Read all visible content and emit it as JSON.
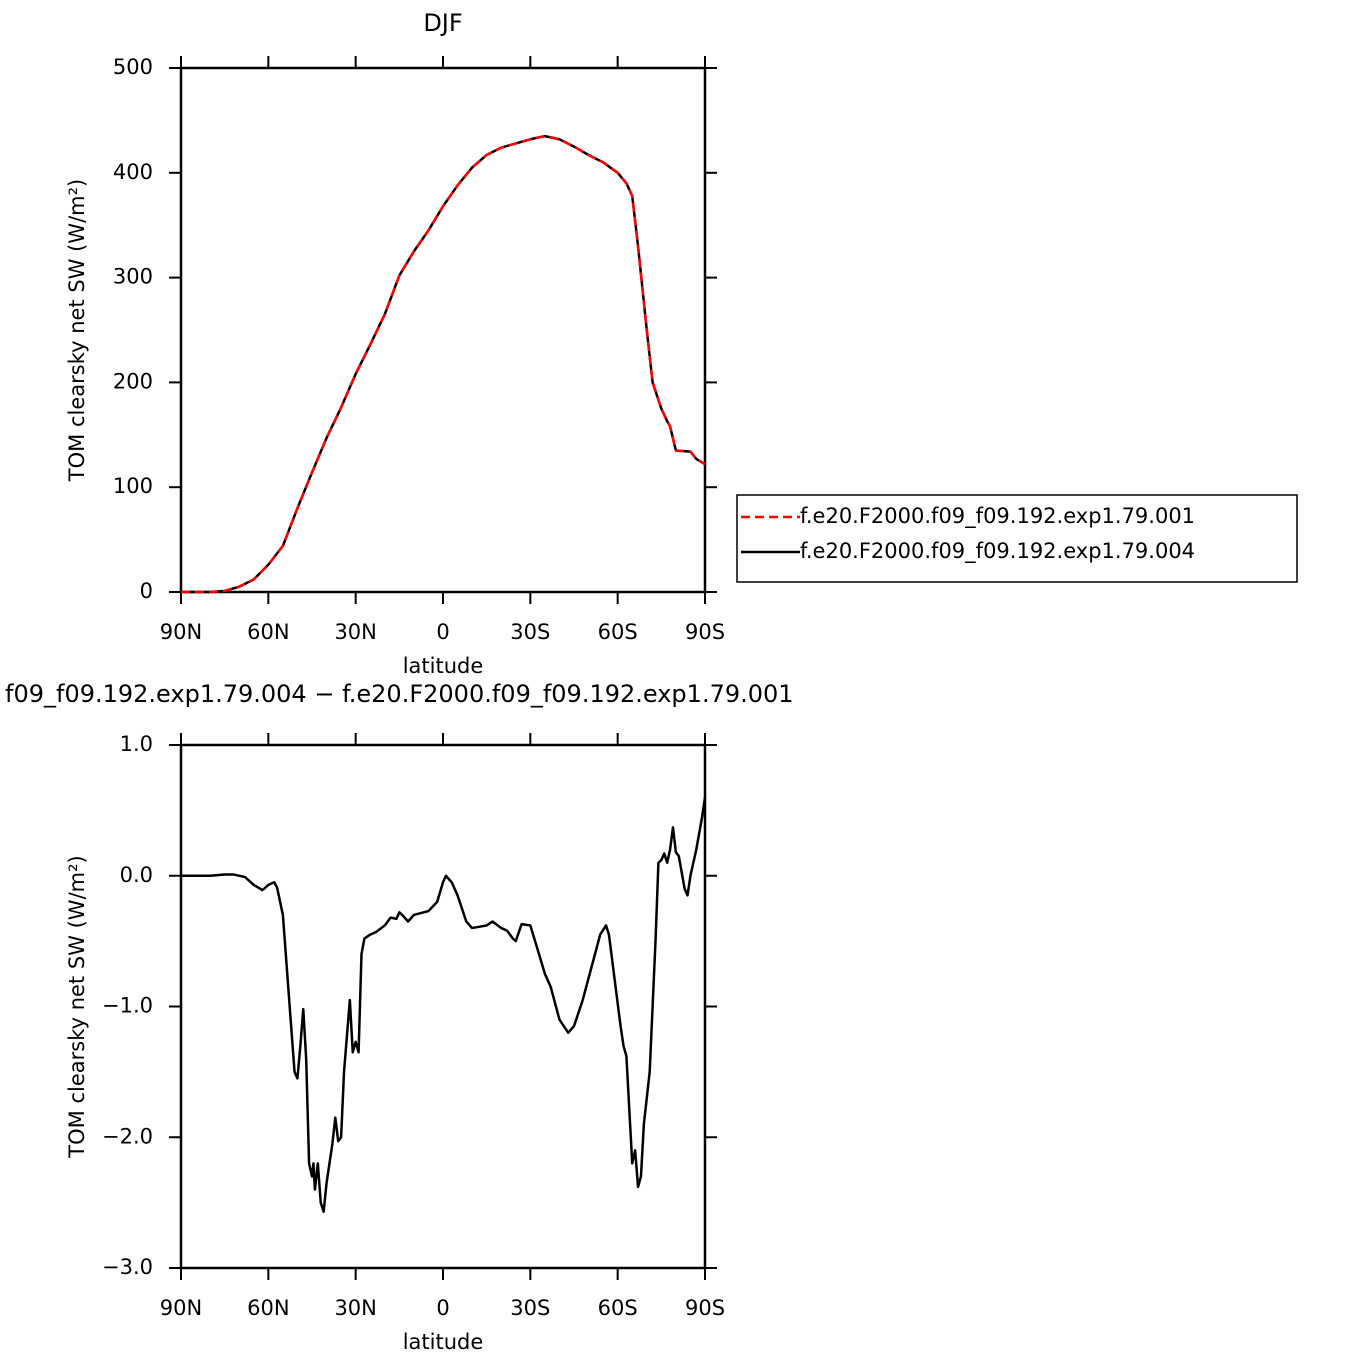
{
  "chart_data": [
    {
      "type": "line",
      "title": "DJF",
      "x_label": "latitude",
      "y_label": "TOM clearsky net SW (W/m²)",
      "x": [
        90,
        85,
        80,
        75,
        70,
        65,
        60,
        55,
        50,
        45,
        40,
        35,
        30,
        25,
        20,
        15,
        10,
        5,
        0,
        -5,
        -10,
        -15,
        -20,
        -25,
        -30,
        -35,
        -40,
        -45,
        -50,
        -55,
        -60,
        -63,
        -65,
        -67,
        -70,
        -72,
        -75,
        -77,
        -78,
        -80,
        -85,
        -87,
        -90
      ],
      "series": [
        {
          "name": "f.e20.F2000.f09_f09.192.exp1.79.001",
          "color": "#ff0000",
          "dash": "dashed",
          "values": [
            0,
            0,
            0,
            1,
            5,
            12,
            26,
            44,
            80,
            114,
            147,
            176,
            208,
            236,
            265,
            302,
            325,
            345,
            368,
            388,
            405,
            417,
            424,
            428,
            432,
            435,
            432,
            425,
            417,
            410,
            400,
            390,
            378,
            330,
            250,
            200,
            175,
            163,
            158,
            135,
            134,
            127,
            122
          ]
        },
        {
          "name": "f.e20.F2000.f09_f09.192.exp1.79.004",
          "color": "#000000",
          "dash": "solid",
          "values": [
            0,
            0,
            0,
            1,
            5,
            12,
            26,
            44,
            80,
            114,
            147,
            176,
            208,
            236,
            265,
            302,
            325,
            345,
            368,
            388,
            405,
            417,
            424,
            428,
            432,
            435,
            432,
            425,
            417,
            410,
            400,
            390,
            378,
            330,
            250,
            200,
            175,
            163,
            158,
            135,
            134,
            127,
            122
          ]
        }
      ],
      "xlim": [
        90,
        -90
      ],
      "xticks": [
        {
          "value": 90,
          "label": "90N"
        },
        {
          "value": 60,
          "label": "60N"
        },
        {
          "value": 30,
          "label": "30N"
        },
        0,
        {
          "value": -30,
          "label": "30S"
        },
        {
          "value": -60,
          "label": "60S"
        },
        {
          "value": -90,
          "label": "90S"
        }
      ],
      "ylim": [
        0,
        500
      ],
      "yticks": [
        0,
        100,
        200,
        300,
        400,
        500
      ],
      "legend": "right"
    },
    {
      "type": "line",
      "title": "f09_f09.192.exp1.79.004 − f.e20.F2000.f09_f09.192.exp1.79.001",
      "x_label": "latitude",
      "y_label": "TOM clearsky net SW (W/m²)",
      "x": [
        90,
        80,
        75,
        72,
        68,
        65,
        62,
        60,
        58,
        57,
        55,
        53,
        51,
        50,
        49,
        48,
        47,
        46,
        45,
        44.5,
        44,
        43,
        42,
        41,
        40,
        38,
        37,
        36,
        35,
        34,
        32,
        31,
        30,
        29,
        28,
        27,
        25,
        23,
        20,
        18,
        16,
        15,
        14,
        12,
        10,
        5,
        2,
        0,
        -1,
        -3,
        -5,
        -8,
        -10,
        -15,
        -17,
        -20,
        -22,
        -24,
        -25,
        -27,
        -30,
        -33,
        -35,
        -37,
        -40,
        -43,
        -45,
        -48,
        -51,
        -54,
        -56,
        -57,
        -59,
        -61,
        -62,
        -63,
        -65,
        -66,
        -67,
        -68,
        -69,
        -71,
        -73,
        -74,
        -75,
        -76,
        -77,
        -78,
        -79,
        -80,
        -81,
        -83,
        -84,
        -85,
        -87,
        -89,
        -90
      ],
      "series": [
        {
          "color": "#000000",
          "values": [
            0,
            0,
            0.01,
            0.01,
            -0.01,
            -0.07,
            -0.11,
            -0.07,
            -0.05,
            -0.09,
            -0.3,
            -0.9,
            -1.5,
            -1.55,
            -1.3,
            -1.02,
            -1.4,
            -2.2,
            -2.3,
            -2.2,
            -2.4,
            -2.2,
            -2.5,
            -2.57,
            -2.35,
            -2.05,
            -1.85,
            -2.03,
            -2.0,
            -1.5,
            -0.95,
            -1.35,
            -1.27,
            -1.35,
            -0.6,
            -0.48,
            -0.45,
            -0.43,
            -0.38,
            -0.32,
            -0.33,
            -0.28,
            -0.3,
            -0.35,
            -0.3,
            -0.27,
            -0.2,
            -0.05,
            0,
            -0.05,
            -0.15,
            -0.35,
            -0.4,
            -0.38,
            -0.35,
            -0.4,
            -0.42,
            -0.48,
            -0.5,
            -0.37,
            -0.38,
            -0.6,
            -0.75,
            -0.85,
            -1.1,
            -1.2,
            -1.15,
            -0.95,
            -0.7,
            -0.45,
            -0.38,
            -0.45,
            -0.8,
            -1.15,
            -1.3,
            -1.38,
            -2.2,
            -2.1,
            -2.38,
            -2.3,
            -1.9,
            -1.5,
            -0.5,
            0.1,
            0.12,
            0.17,
            0.1,
            0.2,
            0.37,
            0.18,
            0.15,
            -0.1,
            -0.15,
            0.0,
            0.2,
            0.45,
            0.6
          ]
        }
      ],
      "xlim": [
        90,
        -90
      ],
      "xticks": [
        {
          "value": 90,
          "label": "90N"
        },
        {
          "value": 60,
          "label": "60N"
        },
        {
          "value": 30,
          "label": "30N"
        },
        0,
        {
          "value": -30,
          "label": "30S"
        },
        {
          "value": -60,
          "label": "60S"
        },
        {
          "value": -90,
          "label": "90S"
        }
      ],
      "ylim": [
        -3,
        1
      ],
      "yticks": [
        {
          "value": -3,
          "label": "−3.0"
        },
        {
          "value": -2,
          "label": "−2.0"
        },
        {
          "value": -1,
          "label": "−1.0"
        },
        {
          "value": 0,
          "label": "0.0"
        },
        {
          "value": 1,
          "label": "1.0"
        }
      ]
    }
  ]
}
